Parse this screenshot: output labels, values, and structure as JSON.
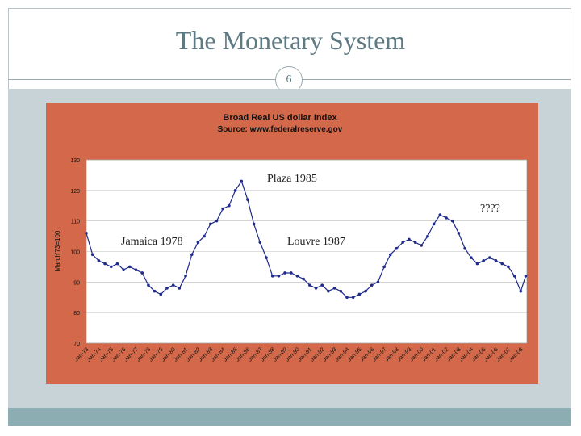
{
  "slide": {
    "title": "The Monetary System",
    "page_number": "6",
    "colors": {
      "title": "#5e7a82",
      "band": "#c8d3d8",
      "bottom_band": "#8caeb3"
    }
  },
  "chart_data": {
    "type": "line",
    "title": "Broad Real US dollar Index",
    "subtitle": "Source: www.federalreserve.gov",
    "ylabel": "March'73=100",
    "xlabel": "",
    "ylim": [
      70,
      130
    ],
    "yticks": [
      70,
      80,
      90,
      100,
      110,
      120,
      130
    ],
    "grid": true,
    "legend": "none",
    "colors": {
      "background": "#d3694a",
      "plot": "#ffffff",
      "series": "#1f2a8a"
    },
    "xticks": [
      "Jan-73",
      "Jan-74",
      "Jan-75",
      "Jan-76",
      "Jan-77",
      "Jan-78",
      "Jan-79",
      "Jan-80",
      "Jan-81",
      "Jan-82",
      "Jan-83",
      "Jan-84",
      "Jan-85",
      "Jan-86",
      "Jan-87",
      "Jan-88",
      "Jan-89",
      "Jan-90",
      "Jan-91",
      "Jan-92",
      "Jan-93",
      "Jan-94",
      "Jan-95",
      "Jan-96",
      "Jan-97",
      "Jan-98",
      "Jan-99",
      "Jan-00",
      "Jan-01",
      "Jan-02",
      "Jan-03",
      "Jan-04",
      "Jan-05",
      "Jan-06",
      "Jan-07",
      "Jan-08"
    ],
    "series": [
      {
        "x": [
          1973.0,
          1973.5,
          1974.0,
          1974.5,
          1975.0,
          1975.5,
          1976.0,
          1976.5,
          1977.0,
          1977.5,
          1978.0,
          1978.5,
          1979.0,
          1979.5,
          1980.0,
          1980.5,
          1981.0,
          1981.5,
          1982.0,
          1982.5,
          1983.0,
          1983.5,
          1984.0,
          1984.5,
          1985.0,
          1985.5,
          1986.0,
          1986.5,
          1987.0,
          1987.5,
          1988.0,
          1988.5,
          1989.0,
          1989.5,
          1990.0,
          1990.5,
          1991.0,
          1991.5,
          1992.0,
          1992.5,
          1993.0,
          1993.5,
          1994.0,
          1994.5,
          1995.0,
          1995.5,
          1996.0,
          1996.5,
          1997.0,
          1997.5,
          1998.0,
          1998.5,
          1999.0,
          1999.5,
          2000.0,
          2000.5,
          2001.0,
          2001.5,
          2002.0,
          2002.5,
          2003.0,
          2003.5,
          2004.0,
          2004.5,
          2005.0,
          2005.5,
          2006.0,
          2006.5,
          2007.0,
          2007.5,
          2008.0,
          2008.4
        ],
        "y": [
          106,
          99,
          97,
          96,
          95,
          96,
          94,
          95,
          94,
          93,
          89,
          87,
          86,
          88,
          89,
          88,
          92,
          99,
          103,
          105,
          109,
          110,
          114,
          115,
          120,
          123,
          117,
          109,
          103,
          98,
          92,
          92,
          93,
          93,
          92,
          91,
          89,
          88,
          89,
          87,
          88,
          87,
          85,
          85,
          86,
          87,
          89,
          90,
          95,
          99,
          101,
          103,
          104,
          103,
          102,
          105,
          109,
          112,
          111,
          110,
          106,
          101,
          98,
          96,
          97,
          98,
          97,
          96,
          95,
          92,
          87,
          92
        ]
      }
    ],
    "annotations": [
      "Plaza 1985",
      "????",
      "Jamaica 1978",
      "Louvre 1987"
    ]
  }
}
